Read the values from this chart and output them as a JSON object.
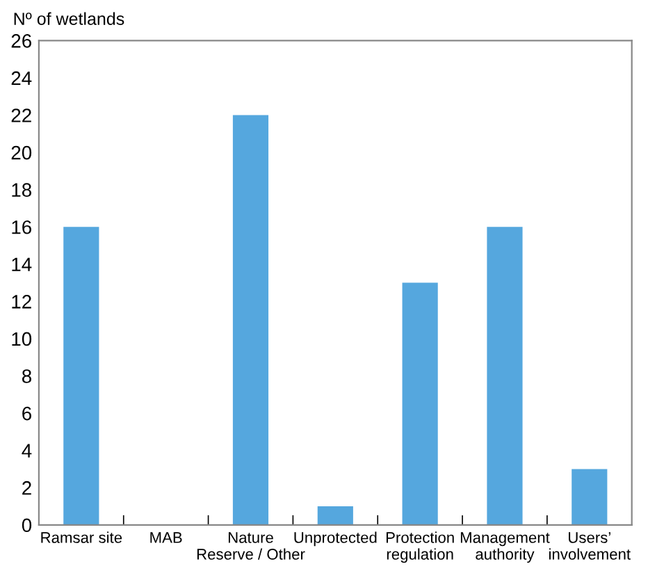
{
  "chart_data": {
    "type": "bar",
    "ylabel": "Nº of wetlands",
    "categories": [
      "Ramsar site",
      "MAB",
      "Nature\nReserve / Other",
      "Unprotected",
      "Protection\nregulation",
      "Management\nauthority",
      "Users’\ninvolvement"
    ],
    "values": [
      16,
      0,
      22,
      1,
      13,
      16,
      3
    ],
    "color": "#55a7de",
    "ylim": [
      0,
      26
    ],
    "yticks": [
      0,
      2,
      4,
      6,
      8,
      10,
      12,
      14,
      16,
      18,
      20,
      22,
      24,
      26
    ],
    "grid": false
  }
}
